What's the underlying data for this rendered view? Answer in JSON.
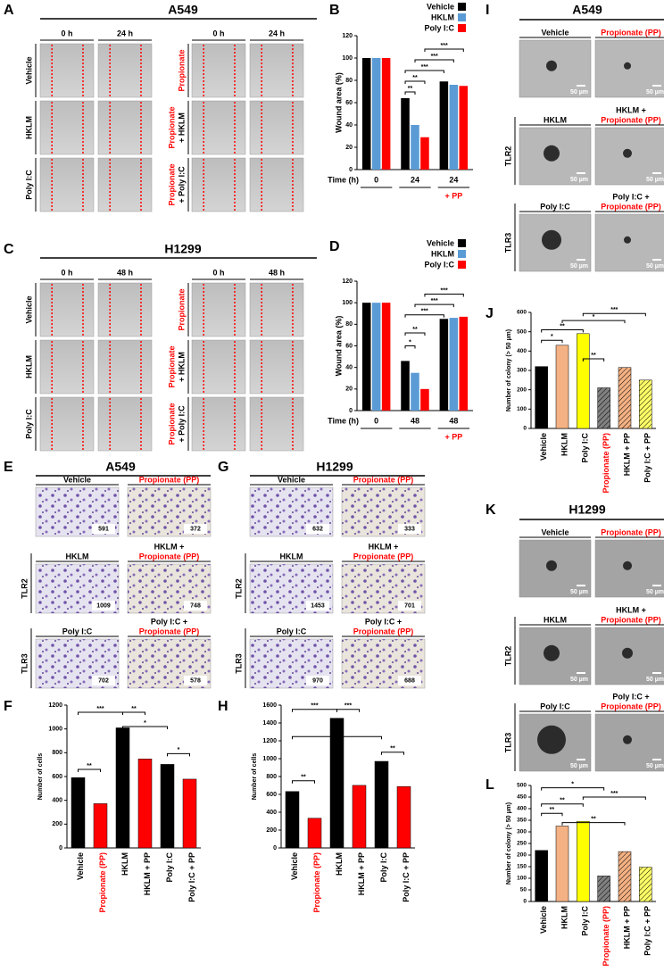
{
  "panels": {
    "wound": [
      {
        "letter": "A",
        "title": "A549",
        "time_headers": [
          "0 h",
          "24 h",
          "0 h",
          "24 h"
        ],
        "left_rows": [
          "Vehicle",
          "HKLM",
          "Poly I:C"
        ],
        "right_rows": [
          [
            "Propionate"
          ],
          [
            "Propionate",
            "+ HKLM"
          ],
          [
            "Propionate",
            "+ Poly I:C"
          ]
        ],
        "row_colors": [
          "#ff0000",
          "#000000"
        ]
      },
      {
        "letter": "C",
        "title": "H1299",
        "time_headers": [
          "0 h",
          "48 h",
          "0 h",
          "48 h"
        ],
        "left_rows": [
          "Vehicle",
          "HKLM",
          "Poly I:C"
        ],
        "right_rows": [
          [
            "Propionate"
          ],
          [
            "Propionate",
            "+ HKLM"
          ],
          [
            "Propionate",
            "+ Poly I:C"
          ]
        ],
        "row_colors": [
          "#ff0000",
          "#000000"
        ]
      }
    ],
    "invasion": [
      {
        "letter": "E",
        "title": "A549",
        "receptor_labels": [
          "TLR2",
          "TLR3"
        ],
        "images": [
          {
            "title": [
              "Vehicle"
            ],
            "title_colors": [
              "#000000"
            ],
            "count": 591
          },
          {
            "title": [
              "Propionate (PP)"
            ],
            "title_colors": [
              "#ff0000"
            ],
            "count": 372
          },
          {
            "title": [
              "HKLM"
            ],
            "title_colors": [
              "#000000"
            ],
            "count": 1009
          },
          {
            "title": [
              "HKLM +",
              "Propionate (PP)"
            ],
            "title_colors": [
              "#000000",
              "#ff0000"
            ],
            "count": 748
          },
          {
            "title": [
              "Poly I:C"
            ],
            "title_colors": [
              "#000000"
            ],
            "count": 702
          },
          {
            "title": [
              "Poly I:C +",
              "Propionate (PP)"
            ],
            "title_colors": [
              "#000000",
              "#ff0000"
            ],
            "count": 578
          }
        ]
      },
      {
        "letter": "G",
        "title": "H1299",
        "receptor_labels": [
          "TLR2",
          "TLR3"
        ],
        "images": [
          {
            "title": [
              "Vehicle"
            ],
            "title_colors": [
              "#000000"
            ],
            "count": 632
          },
          {
            "title": [
              "Propionate (PP)"
            ],
            "title_colors": [
              "#ff0000"
            ],
            "count": 333
          },
          {
            "title": [
              "HKLM"
            ],
            "title_colors": [
              "#000000"
            ],
            "count": 1453
          },
          {
            "title": [
              "HKLM +",
              "Propionate (PP)"
            ],
            "title_colors": [
              "#000000",
              "#ff0000"
            ],
            "count": 701
          },
          {
            "title": [
              "Poly I:C"
            ],
            "title_colors": [
              "#000000"
            ],
            "count": 970
          },
          {
            "title": [
              "Poly I:C +",
              "Propionate (PP)"
            ],
            "title_colors": [
              "#000000",
              "#ff0000"
            ],
            "count": 688
          }
        ]
      }
    ],
    "colony": [
      {
        "letter": "I",
        "title": "A549",
        "receptor_labels": [
          "TLR2",
          "TLR3"
        ],
        "images": [
          {
            "title": [
              "Vehicle"
            ],
            "title_colors": [
              "#000000"
            ],
            "scale": "50 µm"
          },
          {
            "title": [
              "Propionate (PP)"
            ],
            "title_colors": [
              "#ff0000"
            ],
            "scale": "50 µm"
          },
          {
            "title": [
              "HKLM"
            ],
            "title_colors": [
              "#000000"
            ],
            "scale": "50 µm"
          },
          {
            "title": [
              "HKLM +",
              "Propionate (PP)"
            ],
            "title_colors": [
              "#000000",
              "#ff0000"
            ],
            "scale": "50 µm"
          },
          {
            "title": [
              "Poly I:C"
            ],
            "title_colors": [
              "#000000"
            ],
            "scale": "50 µm"
          },
          {
            "title": [
              "Poly I:C +",
              "Propionate (PP)"
            ],
            "title_colors": [
              "#000000",
              "#ff0000"
            ],
            "scale": "50 µm"
          }
        ]
      },
      {
        "letter": "K",
        "title": "H1299",
        "receptor_labels": [
          "TLR2",
          "TLR3"
        ],
        "images": [
          {
            "title": [
              "Vehicle"
            ],
            "title_colors": [
              "#000000"
            ],
            "scale": "50 µm"
          },
          {
            "title": [
              "Propionate (PP)"
            ],
            "title_colors": [
              "#ff0000"
            ],
            "scale": "50 µm"
          },
          {
            "title": [
              "HKLM"
            ],
            "title_colors": [
              "#000000"
            ],
            "scale": "50 µm"
          },
          {
            "title": [
              "HKLM +",
              "Propionate (PP)"
            ],
            "title_colors": [
              "#000000",
              "#ff0000"
            ],
            "scale": "50 µm"
          },
          {
            "title": [
              "Poly I:C"
            ],
            "title_colors": [
              "#000000"
            ],
            "scale": "50 µm"
          },
          {
            "title": [
              "Poly I:C +",
              "Propionate (PP)"
            ],
            "title_colors": [
              "#000000",
              "#ff0000"
            ],
            "scale": "50 µm"
          }
        ]
      }
    ]
  },
  "chart_data": [
    {
      "letter": "B",
      "type": "bar",
      "ylabel": "Wound area (%)",
      "xlabel": "Time (h)",
      "categories": [
        "0",
        "24",
        "24"
      ],
      "category_note": "+ PP",
      "note_color": "#ff0000",
      "ylim": [
        0,
        120
      ],
      "yticks": [
        0,
        20,
        40,
        60,
        80,
        100,
        120
      ],
      "series": [
        {
          "name": "Vehicle",
          "color": "#000000",
          "values": [
            100,
            64,
            79
          ]
        },
        {
          "name": "HKLM",
          "color": "#5b9bd5",
          "values": [
            100,
            40,
            76
          ]
        },
        {
          "name": "Poly I:C",
          "color": "#ff0000",
          "values": [
            100,
            29,
            75
          ]
        }
      ],
      "annotations": [
        "**",
        "**",
        "***",
        "***",
        "***"
      ]
    },
    {
      "letter": "D",
      "type": "bar",
      "ylabel": "Wound area (%)",
      "xlabel": "Time (h)",
      "categories": [
        "0",
        "48",
        "48"
      ],
      "category_note": "+ PP",
      "note_color": "#ff0000",
      "ylim": [
        0,
        120
      ],
      "yticks": [
        0,
        20,
        40,
        60,
        80,
        100,
        120
      ],
      "series": [
        {
          "name": "Vehicle",
          "color": "#000000",
          "values": [
            100,
            46,
            85
          ]
        },
        {
          "name": "HKLM",
          "color": "#5b9bd5",
          "values": [
            100,
            35,
            86
          ]
        },
        {
          "name": "Poly I:C",
          "color": "#ff0000",
          "values": [
            100,
            20,
            87
          ]
        }
      ],
      "annotations": [
        "*",
        "**",
        "***",
        "***",
        "***"
      ]
    },
    {
      "letter": "F",
      "type": "bar",
      "ylabel": "Number of cells",
      "categories": [
        "Vehicle",
        "Propionate (PP)",
        "HKLM",
        "HKLM + PP",
        "Poly I:C",
        "Poly I:C + PP"
      ],
      "values": [
        591,
        372,
        1009,
        748,
        702,
        578
      ],
      "colors": [
        "#000000",
        "#ff0000",
        "#000000",
        "#ff0000",
        "#000000",
        "#ff0000"
      ],
      "category_colors": [
        "#000000",
        "#ff0000",
        "#000000",
        "#000000",
        "#000000",
        "#000000"
      ],
      "ylim": [
        0,
        1200
      ],
      "yticks": [
        0,
        200,
        400,
        600,
        800,
        1000,
        1200
      ],
      "annotations": [
        "**",
        "***",
        "**",
        "*",
        "*"
      ]
    },
    {
      "letter": "H",
      "type": "bar",
      "ylabel": "Number of cells",
      "categories": [
        "Vehicle",
        "Propionate (PP)",
        "HKLM",
        "HKLM + PP",
        "Poly I:C",
        "Poly I:C + PP"
      ],
      "values": [
        632,
        333,
        1453,
        701,
        970,
        688
      ],
      "colors": [
        "#000000",
        "#ff0000",
        "#000000",
        "#ff0000",
        "#000000",
        "#ff0000"
      ],
      "category_colors": [
        "#000000",
        "#ff0000",
        "#000000",
        "#000000",
        "#000000",
        "#000000"
      ],
      "ylim": [
        0,
        1600
      ],
      "yticks": [
        0,
        200,
        400,
        600,
        800,
        1000,
        1200,
        1400,
        1600
      ],
      "annotations": [
        "**",
        "***",
        "***",
        "**",
        "**"
      ]
    },
    {
      "letter": "J",
      "type": "bar",
      "ylabel": "Number of colony (> 50 µm)",
      "categories": [
        "Vehicle",
        "HKLM",
        "Poly I:C",
        "Propionate (PP)",
        "HKLM + PP",
        "Poly I:C + PP"
      ],
      "values": [
        320,
        430,
        490,
        210,
        315,
        250
      ],
      "colors": [
        "#000000",
        "#f4b183",
        "#ffff00",
        "#808080",
        "#f4b183",
        "#ffff66"
      ],
      "hatch": [
        false,
        false,
        false,
        true,
        true,
        true
      ],
      "category_colors": [
        "#000000",
        "#000000",
        "#000000",
        "#ff0000",
        "#000000",
        "#000000"
      ],
      "ylim": [
        0,
        600
      ],
      "yticks": [
        0,
        100,
        200,
        300,
        400,
        500,
        600
      ],
      "annotations": [
        "*",
        "**",
        "**",
        "*",
        "***"
      ]
    },
    {
      "letter": "L",
      "type": "bar",
      "ylabel": "Number of colony (> 50 µm)",
      "categories": [
        "Vehicle",
        "HKLM",
        "Poly I:C",
        "Propionate (PP)",
        "HKLM + PP",
        "Poly I:C + PP"
      ],
      "values": [
        220,
        325,
        345,
        110,
        215,
        148
      ],
      "colors": [
        "#000000",
        "#f4b183",
        "#ffff00",
        "#808080",
        "#f4b183",
        "#ffff66"
      ],
      "hatch": [
        false,
        false,
        false,
        true,
        true,
        true
      ],
      "category_colors": [
        "#000000",
        "#000000",
        "#000000",
        "#ff0000",
        "#000000",
        "#000000"
      ],
      "ylim": [
        0,
        500
      ],
      "yticks": [
        0,
        50,
        100,
        150,
        200,
        250,
        300,
        350,
        400,
        450,
        500
      ],
      "annotations": [
        "*",
        "**",
        "**",
        "**",
        "***"
      ]
    }
  ]
}
